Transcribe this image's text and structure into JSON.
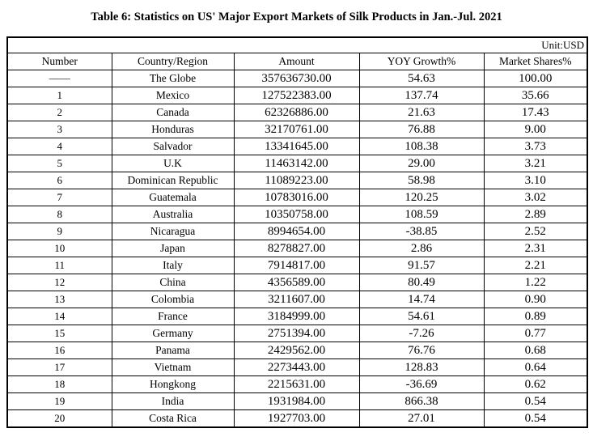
{
  "title": "Table 6: Statistics on US' Major Export Markets of Silk Products in Jan.-Jul. 2021",
  "unit_label": "Unit:USD",
  "colors": {
    "text": "#000000",
    "border": "#000000",
    "background": "#ffffff"
  },
  "table": {
    "columns": [
      "Number",
      "Country/Region",
      "Amount",
      "YOY Growth%",
      "Market Shares%"
    ],
    "rows": [
      [
        "——",
        "The Globe",
        "357636730.00",
        "54.63",
        "100.00"
      ],
      [
        "1",
        "Mexico",
        "127522383.00",
        "137.74",
        "35.66"
      ],
      [
        "2",
        "Canada",
        "62326886.00",
        "21.63",
        "17.43"
      ],
      [
        "3",
        "Honduras",
        "32170761.00",
        "76.88",
        "9.00"
      ],
      [
        "4",
        "Salvador",
        "13341645.00",
        "108.38",
        "3.73"
      ],
      [
        "5",
        "U.K",
        "11463142.00",
        "29.00",
        "3.21"
      ],
      [
        "6",
        "Dominican Republic",
        "11089223.00",
        "58.98",
        "3.10"
      ],
      [
        "7",
        "Guatemala",
        "10783016.00",
        "120.25",
        "3.02"
      ],
      [
        "8",
        "Australia",
        "10350758.00",
        "108.59",
        "2.89"
      ],
      [
        "9",
        "Nicaragua",
        "8994654.00",
        "-38.85",
        "2.52"
      ],
      [
        "10",
        "Japan",
        "8278827.00",
        "2.86",
        "2.31"
      ],
      [
        "11",
        "Italy",
        "7914817.00",
        "91.57",
        "2.21"
      ],
      [
        "12",
        "China",
        "4356589.00",
        "80.49",
        "1.22"
      ],
      [
        "13",
        "Colombia",
        "3211607.00",
        "14.74",
        "0.90"
      ],
      [
        "14",
        "France",
        "3184999.00",
        "54.61",
        "0.89"
      ],
      [
        "15",
        "Germany",
        "2751394.00",
        "-7.26",
        "0.77"
      ],
      [
        "16",
        "Panama",
        "2429562.00",
        "76.76",
        "0.68"
      ],
      [
        "17",
        "Vietnam",
        "2273443.00",
        "128.83",
        "0.64"
      ],
      [
        "18",
        "Hongkong",
        "2215631.00",
        "-36.69",
        "0.62"
      ],
      [
        "19",
        "India",
        "1931984.00",
        "866.38",
        "0.54"
      ],
      [
        "20",
        "Costa Rica",
        "1927703.00",
        "27.01",
        "0.54"
      ]
    ]
  }
}
